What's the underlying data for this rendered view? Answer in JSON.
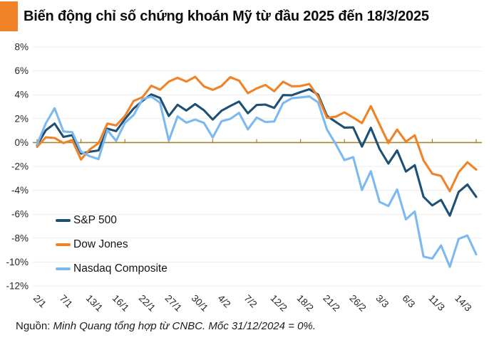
{
  "header": {
    "title": "Biến động chỉ số chứng khoán Mỹ từ đầu 2025 đến 18/3/2025",
    "accent_color": "#F08228"
  },
  "chart_data": {
    "type": "line",
    "title": "Biến động chỉ số chứng khoán Mỹ từ đầu 2025 đến 18/3/2025",
    "ylabel": "",
    "xlabel": "",
    "ylim": [
      -12,
      8
    ],
    "grid": "horizontal",
    "legend_position": "inside-left",
    "y_tick_values": [
      8,
      6,
      4,
      2,
      0,
      -2,
      -4,
      -6,
      -8,
      -10,
      -12
    ],
    "y_tick_labels": [
      "8%",
      "6%",
      "4%",
      "2%",
      "0%",
      "-2%",
      "-4%",
      "-6%",
      "-8%",
      "-10%",
      "-12%"
    ],
    "x_tick_labels": [
      "2/1",
      "7/1",
      "13/1",
      "16/1",
      "22/1",
      "27/1",
      "30/1",
      "4/2",
      "7/2",
      "12/2",
      "18/2",
      "21/2",
      "26/2",
      "3/3",
      "6/3",
      "11/3",
      "14/3"
    ],
    "x_label_every_n_points": 3,
    "axis_tick_every_n_points": 5,
    "zero_axis_color": "#A5842E",
    "gridline_color": "#ECECEC",
    "series": [
      {
        "name": "S&P 500",
        "color": "#1D5074",
        "values": [
          -0.22,
          1.03,
          1.59,
          0.47,
          0.62,
          -0.93,
          -0.77,
          -0.66,
          1.16,
          0.95,
          1.96,
          2.85,
          3.48,
          4.03,
          3.73,
          2.22,
          3.16,
          2.68,
          3.22,
          2.7,
          1.92,
          2.66,
          3.06,
          3.43,
          2.45,
          3.14,
          3.18,
          2.9,
          3.97,
          3.96,
          4.22,
          4.46,
          4.01,
          2.24,
          1.73,
          1.25,
          1.27,
          -0.34,
          1.24,
          -0.54,
          -1.76,
          -0.66,
          -2.43,
          -1.89,
          -4.54,
          -5.26,
          -4.8,
          -6.12,
          -4.13,
          -3.51,
          -4.54
        ]
      },
      {
        "name": "Dow Jones",
        "color": "#F08228",
        "values": [
          -0.36,
          0.44,
          0.38,
          -0.04,
          0.21,
          -1.42,
          -0.58,
          -0.06,
          1.59,
          1.43,
          2.22,
          3.48,
          3.79,
          4.75,
          4.42,
          5.1,
          5.42,
          5.1,
          5.5,
          4.7,
          4.41,
          4.73,
          5.47,
          5.18,
          4.13,
          4.53,
          4.82,
          4.29,
          5.09,
          4.71,
          4.73,
          4.9,
          3.84,
          2.08,
          2.16,
          2.53,
          2.09,
          1.63,
          3.05,
          1.52,
          -0.05,
          1.09,
          0.08,
          0.61,
          -1.49,
          -2.61,
          -2.8,
          -4.07,
          -2.48,
          -1.65,
          -2.26
        ]
      },
      {
        "name": "Nasdaq Composite",
        "color": "#7CB9F0",
        "values": [
          -0.16,
          1.61,
          2.87,
          0.93,
          0.87,
          -0.77,
          -1.15,
          -1.38,
          1.04,
          0.14,
          1.65,
          2.31,
          3.62,
          3.85,
          3.33,
          0.16,
          2.19,
          1.66,
          1.92,
          1.64,
          0.42,
          1.78,
          1.98,
          2.49,
          1.1,
          2.09,
          1.72,
          1.76,
          3.29,
          3.71,
          3.78,
          3.86,
          3.37,
          1.1,
          -0.12,
          -1.47,
          -1.22,
          -3.97,
          -2.4,
          -4.97,
          -5.31,
          -3.93,
          -6.43,
          -5.77,
          -9.54,
          -9.71,
          -8.61,
          -10.4,
          -8.06,
          -7.78,
          -9.36
        ]
      }
    ]
  },
  "footer": {
    "source_label": "Nguồn:",
    "source_text": "Minh Quang tổng hợp từ CNBC. Mốc 31/12/2024 = 0%."
  }
}
